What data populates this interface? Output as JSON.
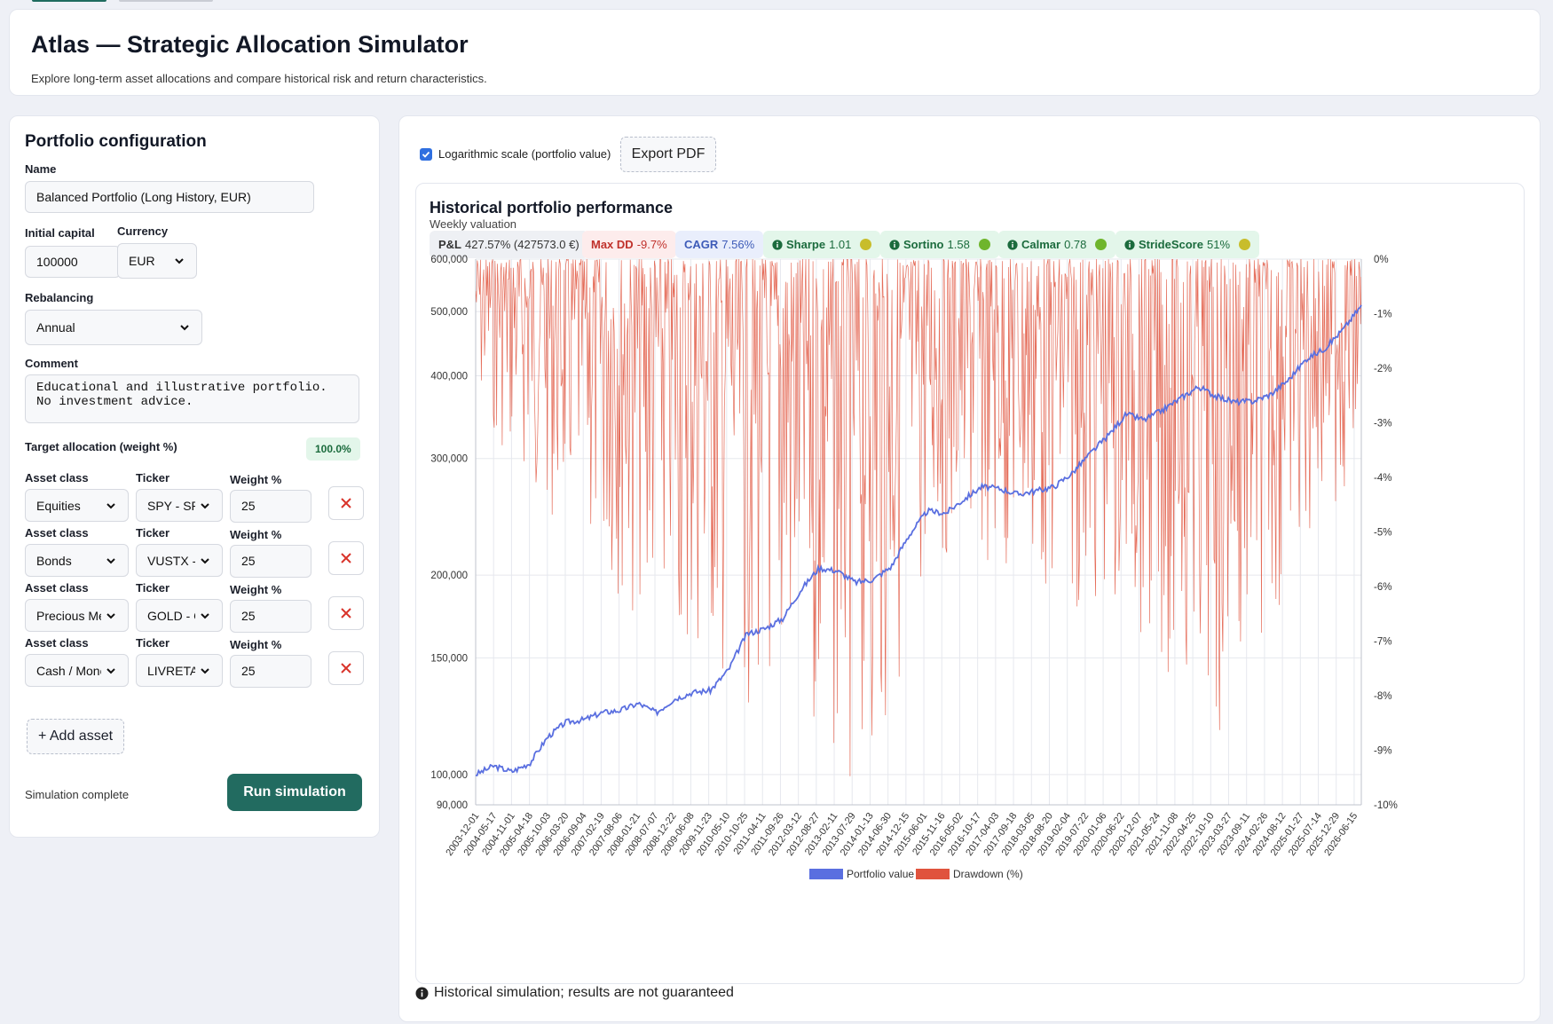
{
  "app": {
    "title": "Atlas — Strategic Allocation Simulator",
    "subtitle": "Explore long-term asset allocations and compare historical risk and return characteristics."
  },
  "config": {
    "section_title": "Portfolio configuration",
    "name_label": "Name",
    "name_value": "Balanced Portfolio (Long History, EUR)",
    "capital_label": "Initial capital",
    "capital_value": "100000",
    "currency_label": "Currency",
    "currency_value": "EUR",
    "rebalancing_label": "Rebalancing",
    "rebalancing_value": "Annual",
    "comment_label": "Comment",
    "comment_value": "Educational and illustrative portfolio.\nNo investment advice.",
    "allocation_label": "Target allocation (weight %)",
    "allocation_total": "100.0%",
    "asset_class_label": "Asset class",
    "ticker_label": "Ticker",
    "weight_label": "Weight %",
    "assets": [
      {
        "asset_class": "Equities",
        "ticker": "SPY - SPDR",
        "weight": "25"
      },
      {
        "asset_class": "Bonds",
        "ticker": "VUSTX - Lo",
        "weight": "25"
      },
      {
        "asset_class": "Precious Metals",
        "ticker": "GOLD - Go",
        "weight": "25"
      },
      {
        "asset_class": "Cash / Monetary",
        "ticker": "LIVRETA - L",
        "weight": "25"
      }
    ],
    "add_asset_label": "+ Add asset",
    "status": "Simulation complete",
    "run_label": "Run simulation"
  },
  "results": {
    "log_scale_label": "Logarithmic scale (portfolio value)",
    "log_scale_checked": true,
    "export_label": "Export PDF",
    "chart_title": "Historical portfolio performance",
    "chart_subtitle": "Weekly valuation",
    "metrics": [
      {
        "key": "P&L",
        "value": "427.57% (427573.0 €)",
        "bg": "#eef0f4",
        "fg": "#333"
      },
      {
        "key": "Max DD",
        "value": "-9.7%",
        "bg": "#fdecec",
        "fg": "#c0312b"
      },
      {
        "key": "CAGR",
        "value": "7.56%",
        "bg": "#e9eefc",
        "fg": "#3d5bb8"
      },
      {
        "key": "Sharpe",
        "value": "1.01",
        "bg": "#e3f6ea",
        "fg": "#1b6b3d",
        "dot": "#c8bd2b"
      },
      {
        "key": "Sortino",
        "value": "1.58",
        "bg": "#e3f6ea",
        "fg": "#1b6b3d",
        "dot": "#6fb52c"
      },
      {
        "key": "Calmar",
        "value": "0.78",
        "bg": "#e3f6ea",
        "fg": "#1b6b3d",
        "dot": "#6fb52c"
      },
      {
        "key": "StrideScore",
        "value": "51%",
        "bg": "#e3f6ea",
        "fg": "#1b6b3d",
        "dot": "#c8bd2b"
      }
    ],
    "footnote": "Historical simulation; results are not guaranteed"
  },
  "chart_data": {
    "type": "line",
    "title": "Historical portfolio performance",
    "subtitle": "Weekly valuation",
    "y_left_scale": "log",
    "y_left_range": [
      90000,
      600000
    ],
    "y_left_ticks": [
      "90,000",
      "100,000",
      "150,000",
      "200,000",
      "300,000",
      "400,000",
      "500,000",
      "600,000"
    ],
    "y_right_range": [
      -10,
      0
    ],
    "y_right_ticks": [
      "0%",
      "-1%",
      "-2%",
      "-3%",
      "-4%",
      "-5%",
      "-6%",
      "-7%",
      "-8%",
      "-9%",
      "-10%"
    ],
    "x_ticks": [
      "2003-12-01",
      "2004-05-17",
      "2004-11-01",
      "2005-04-18",
      "2005-10-03",
      "2006-03-20",
      "2006-09-04",
      "2007-02-19",
      "2007-08-06",
      "2008-01-21",
      "2008-07-07",
      "2008-12-22",
      "2009-06-08",
      "2009-11-23",
      "2010-05-10",
      "2010-10-25",
      "2011-04-11",
      "2011-09-26",
      "2012-03-12",
      "2012-08-27",
      "2013-02-11",
      "2013-07-29",
      "2014-01-13",
      "2014-06-30",
      "2014-12-15",
      "2015-06-01",
      "2015-11-16",
      "2016-05-02",
      "2016-10-17",
      "2017-04-03",
      "2017-09-18",
      "2018-03-05",
      "2018-08-20",
      "2019-02-04",
      "2019-07-22",
      "2020-01-06",
      "2020-06-22",
      "2020-12-07",
      "2021-05-24",
      "2021-11-08",
      "2022-04-25",
      "2022-10-10",
      "2023-03-27",
      "2023-09-11",
      "2024-02-26",
      "2024-08-12",
      "2025-01-27",
      "2025-07-14",
      "2025-12-29",
      "2026-06-15"
    ],
    "legend_position": "bottom",
    "grid": true,
    "series": [
      {
        "name": "Portfolio value",
        "color": "#5a6fe0",
        "axis": "left",
        "x": [
          "2003-12-01",
          "2004-05-17",
          "2004-11-01",
          "2005-04-18",
          "2005-10-03",
          "2006-03-20",
          "2006-09-04",
          "2007-02-19",
          "2007-08-06",
          "2008-01-21",
          "2008-07-07",
          "2008-12-22",
          "2009-06-08",
          "2009-11-23",
          "2010-05-10",
          "2010-10-25",
          "2011-04-11",
          "2011-09-26",
          "2012-03-12",
          "2012-08-27",
          "2013-02-11",
          "2013-07-29",
          "2014-01-13",
          "2014-06-30",
          "2014-12-15",
          "2015-06-01",
          "2015-11-16",
          "2016-05-02",
          "2016-10-17",
          "2017-04-03",
          "2017-09-18",
          "2018-03-05",
          "2018-08-20",
          "2019-02-04",
          "2019-07-22",
          "2020-01-06",
          "2020-06-22",
          "2020-12-07",
          "2021-05-24",
          "2021-11-08",
          "2022-04-25",
          "2022-10-10",
          "2023-03-27",
          "2023-09-11",
          "2024-02-26",
          "2024-08-12",
          "2025-01-27",
          "2025-07-14",
          "2025-12-29",
          "2026-06-15"
        ],
        "values": [
          100000,
          103000,
          101000,
          104000,
          114000,
          120000,
          121000,
          124000,
          125000,
          128000,
          124000,
          130000,
          133000,
          134000,
          144000,
          163000,
          166000,
          172000,
          190000,
          205000,
          203000,
          195000,
          197000,
          206000,
          230000,
          250000,
          248000,
          260000,
          272000,
          270000,
          265000,
          268000,
          272000,
          285000,
          305000,
          325000,
          350000,
          343000,
          355000,
          370000,
          385000,
          372000,
          365000,
          366000,
          375000,
          395000,
          425000,
          440000,
          470000,
          510000
        ]
      },
      {
        "name": "Drawdown (%)",
        "color": "#e0533d",
        "axis": "right",
        "min_value": -9.7
      }
    ]
  }
}
